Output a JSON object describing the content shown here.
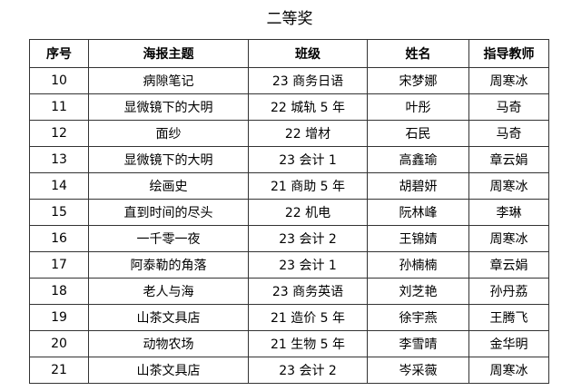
{
  "title": "二等奖",
  "headers": [
    "序号",
    "海报主题",
    "班级",
    "姓名",
    "指导教师"
  ],
  "rows": [
    [
      "10",
      "病隙笔记",
      "23 商务日语",
      "宋梦娜",
      "周寒冰"
    ],
    [
      "11",
      "显微镜下的大明",
      "22 城轨 5 年",
      "叶彤",
      "马奇"
    ],
    [
      "12",
      "面纱",
      "22 增材",
      "石民",
      "马奇"
    ],
    [
      "13",
      "显微镜下的大明",
      "23 会计 1",
      "高鑫瑜",
      "章云娟"
    ],
    [
      "14",
      "绘画史",
      "21 商助 5 年",
      "胡碧妍",
      "周寒冰"
    ],
    [
      "15",
      "直到时间的尽头",
      "22 机电",
      "阮林峰",
      "李琳"
    ],
    [
      "16",
      "一千零一夜",
      "23 会计 2",
      "王锦婧",
      "周寒冰"
    ],
    [
      "17",
      "阿泰勒的角落",
      "23 会计 1",
      "孙楠楠",
      "章云娟"
    ],
    [
      "18",
      "老人与海",
      "23 商务英语",
      "刘芝艳",
      "孙丹荔"
    ],
    [
      "19",
      "山茶文具店",
      "21 造价 5 年",
      "徐宇燕",
      "王腾飞"
    ],
    [
      "20",
      "动物农场",
      "21 生物 5 年",
      "李雪晴",
      "金华明"
    ],
    [
      "21",
      "山茶文具店",
      "23 会计 2",
      "岑采薇",
      "周寒冰"
    ]
  ]
}
